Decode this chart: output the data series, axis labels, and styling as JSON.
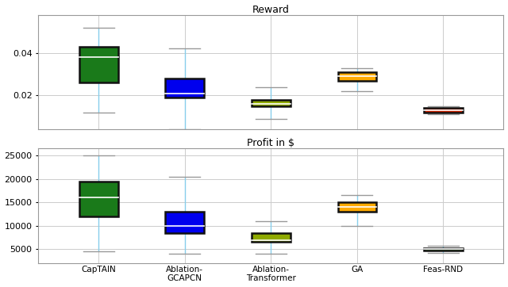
{
  "title1": "Reward",
  "title2": "Profit in $",
  "categories": [
    "CapTAIN",
    "Ablation-\nGCAPCN",
    "Ablation-\nTransformer",
    "GA",
    "Feas-RND"
  ],
  "reward_boxes": [
    {
      "whislo": 0.012,
      "q1": 0.026,
      "med": 0.038,
      "q3": 0.043,
      "whishi": 0.052,
      "color": "#1a7a1a"
    },
    {
      "whislo": 0.004,
      "q1": 0.019,
      "med": 0.021,
      "q3": 0.028,
      "whishi": 0.042,
      "color": "#0000ee"
    },
    {
      "whislo": 0.009,
      "q1": 0.015,
      "med": 0.016,
      "q3": 0.018,
      "whishi": 0.024,
      "color": "#8faa00"
    },
    {
      "whislo": 0.022,
      "q1": 0.027,
      "med": 0.029,
      "q3": 0.031,
      "whishi": 0.033,
      "color": "#ffaa00"
    },
    {
      "whislo": 0.011,
      "q1": 0.012,
      "med": 0.013,
      "q3": 0.014,
      "whishi": 0.015,
      "color": "#cc2200"
    }
  ],
  "profit_boxes": [
    {
      "whislo": 4500,
      "q1": 12000,
      "med": 16000,
      "q3": 19500,
      "whishi": 25000,
      "color": "#1a7a1a"
    },
    {
      "whislo": 4000,
      "q1": 8500,
      "med": 10000,
      "q3": 13000,
      "whishi": 20500,
      "color": "#0000ee"
    },
    {
      "whislo": 4000,
      "q1": 6500,
      "med": 7000,
      "q3": 8500,
      "whishi": 11000,
      "color": "#8faa00"
    },
    {
      "whislo": 10000,
      "q1": 13000,
      "med": 14000,
      "q3": 15000,
      "whishi": 16500,
      "color": "#ffaa00"
    },
    {
      "whislo": 4200,
      "q1": 4700,
      "med": 5000,
      "q3": 5300,
      "whishi": 5800,
      "color": "#6aaa55"
    }
  ],
  "reward_yticks": [
    0.02,
    0.04
  ],
  "reward_ylim": [
    0.004,
    0.058
  ],
  "profit_yticks": [
    5000,
    10000,
    15000,
    20000,
    25000
  ],
  "profit_ylim": [
    2000,
    26500
  ],
  "whisker_color": "#87ceeb",
  "cap_color": "#999999",
  "box_edge_color": "#111111",
  "median_color": "#ffffff",
  "grid_color": "#cccccc",
  "bg_color": "#ffffff",
  "fig_bg": "#ffffff",
  "figsize": [
    6.4,
    3.62
  ],
  "dpi": 100,
  "box_width": 0.45
}
